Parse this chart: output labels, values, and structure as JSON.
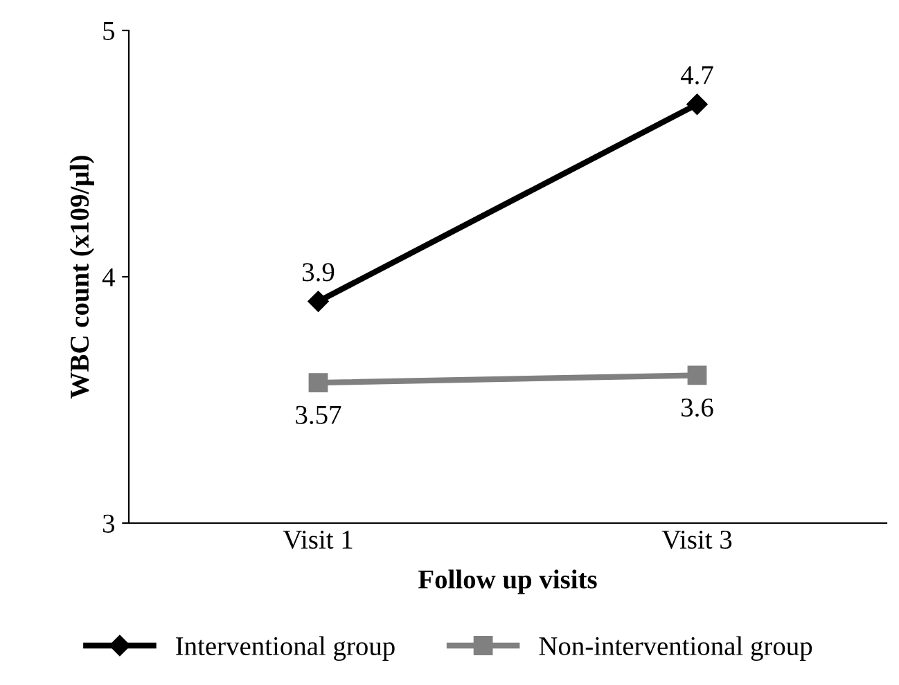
{
  "chart_data": {
    "type": "line",
    "xlabel": "Follow up visits",
    "ylabel": "WBC count (x109/µl)",
    "categories": [
      "Visit 1",
      "Visit 3"
    ],
    "series": [
      {
        "name": "Interventional group",
        "color": "#000000",
        "values": [
          3.9,
          4.7
        ],
        "marker": "diamond"
      },
      {
        "name": "Non-interventional group",
        "color": "#808080",
        "values": [
          3.57,
          3.6
        ],
        "marker": "square"
      }
    ],
    "ylim": [
      3,
      5
    ],
    "yticks": [
      3,
      4,
      5
    ],
    "data_labels": true,
    "legend": "bottom",
    "grid": false
  }
}
